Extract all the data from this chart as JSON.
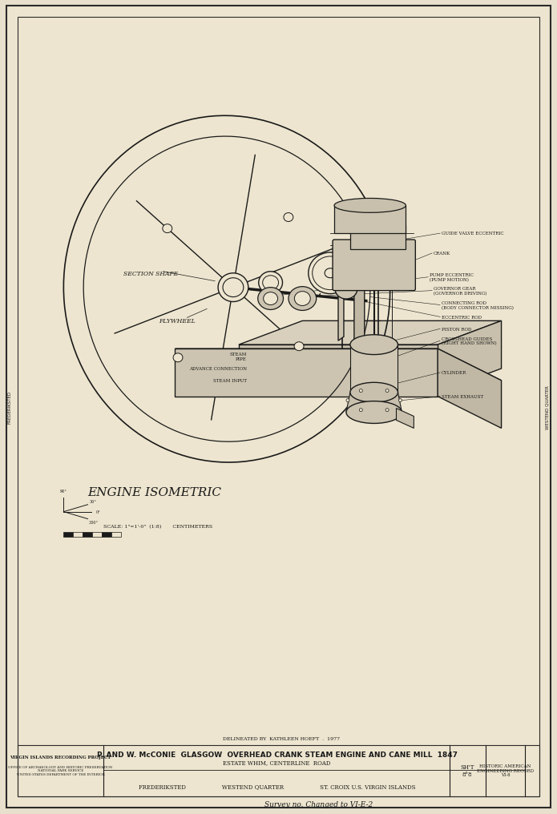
{
  "bg_color": "#e8e0cc",
  "paper_color": "#ede5cf",
  "border_color": "#2a2a2a",
  "line_color": "#1a1a1a",
  "title": "P. AND W. McCONIE  GLASGOW  OVERHEAD CRANK STEAM ENGINE AND CANE MILL  1847",
  "subtitle1": "ESTATE WHIM, CENTERLINE  ROAD",
  "subtitle2": "FREDERIKSTED                    WESTEND QUARTER                    ST. CROIX U.S. VIRGIN ISLANDS",
  "sheet": "SH'T\n8°8",
  "record": "HISTORIC AMERICAN\nENGINEERING RECORD\nVI-8",
  "project": "VIRGIN ISLANDS RECORDING PROJECT",
  "delineated": "DELINEATED BY  KATHLEEN HOEFT  .  1977",
  "survey_note": "Survey no. Changed to VI-E-2",
  "engine_label": "ENGINE ISOMETRIC",
  "scale_label": "SCALE: 1\"=1'-0\"  (1:8)       CENTIMETERS",
  "section_label": "SECTION SHAPE",
  "flywheel_label": "FLYWHEEL",
  "labels": [
    "PUMP ECCENTRIC\n(PUMP MOTION)",
    "GOVERNOR\nGEAR\n(GOVERNOR\nDRIVING)",
    "GUIDE VALVE ECCENTRIC",
    "CRANK",
    "CONNECTING ROD\n(BODY CONNECTOR MISSING)",
    "ECCENTRIC ROD",
    "PISTON ROD",
    "CROSSHEAD GUIDES\n(RIGHT HAND SHOWN)",
    "CYLINDER",
    "STEAM EXHAUST",
    "STEAM PIPE",
    "ADVANCE CONNECTION",
    "STEAM INPUT"
  ]
}
